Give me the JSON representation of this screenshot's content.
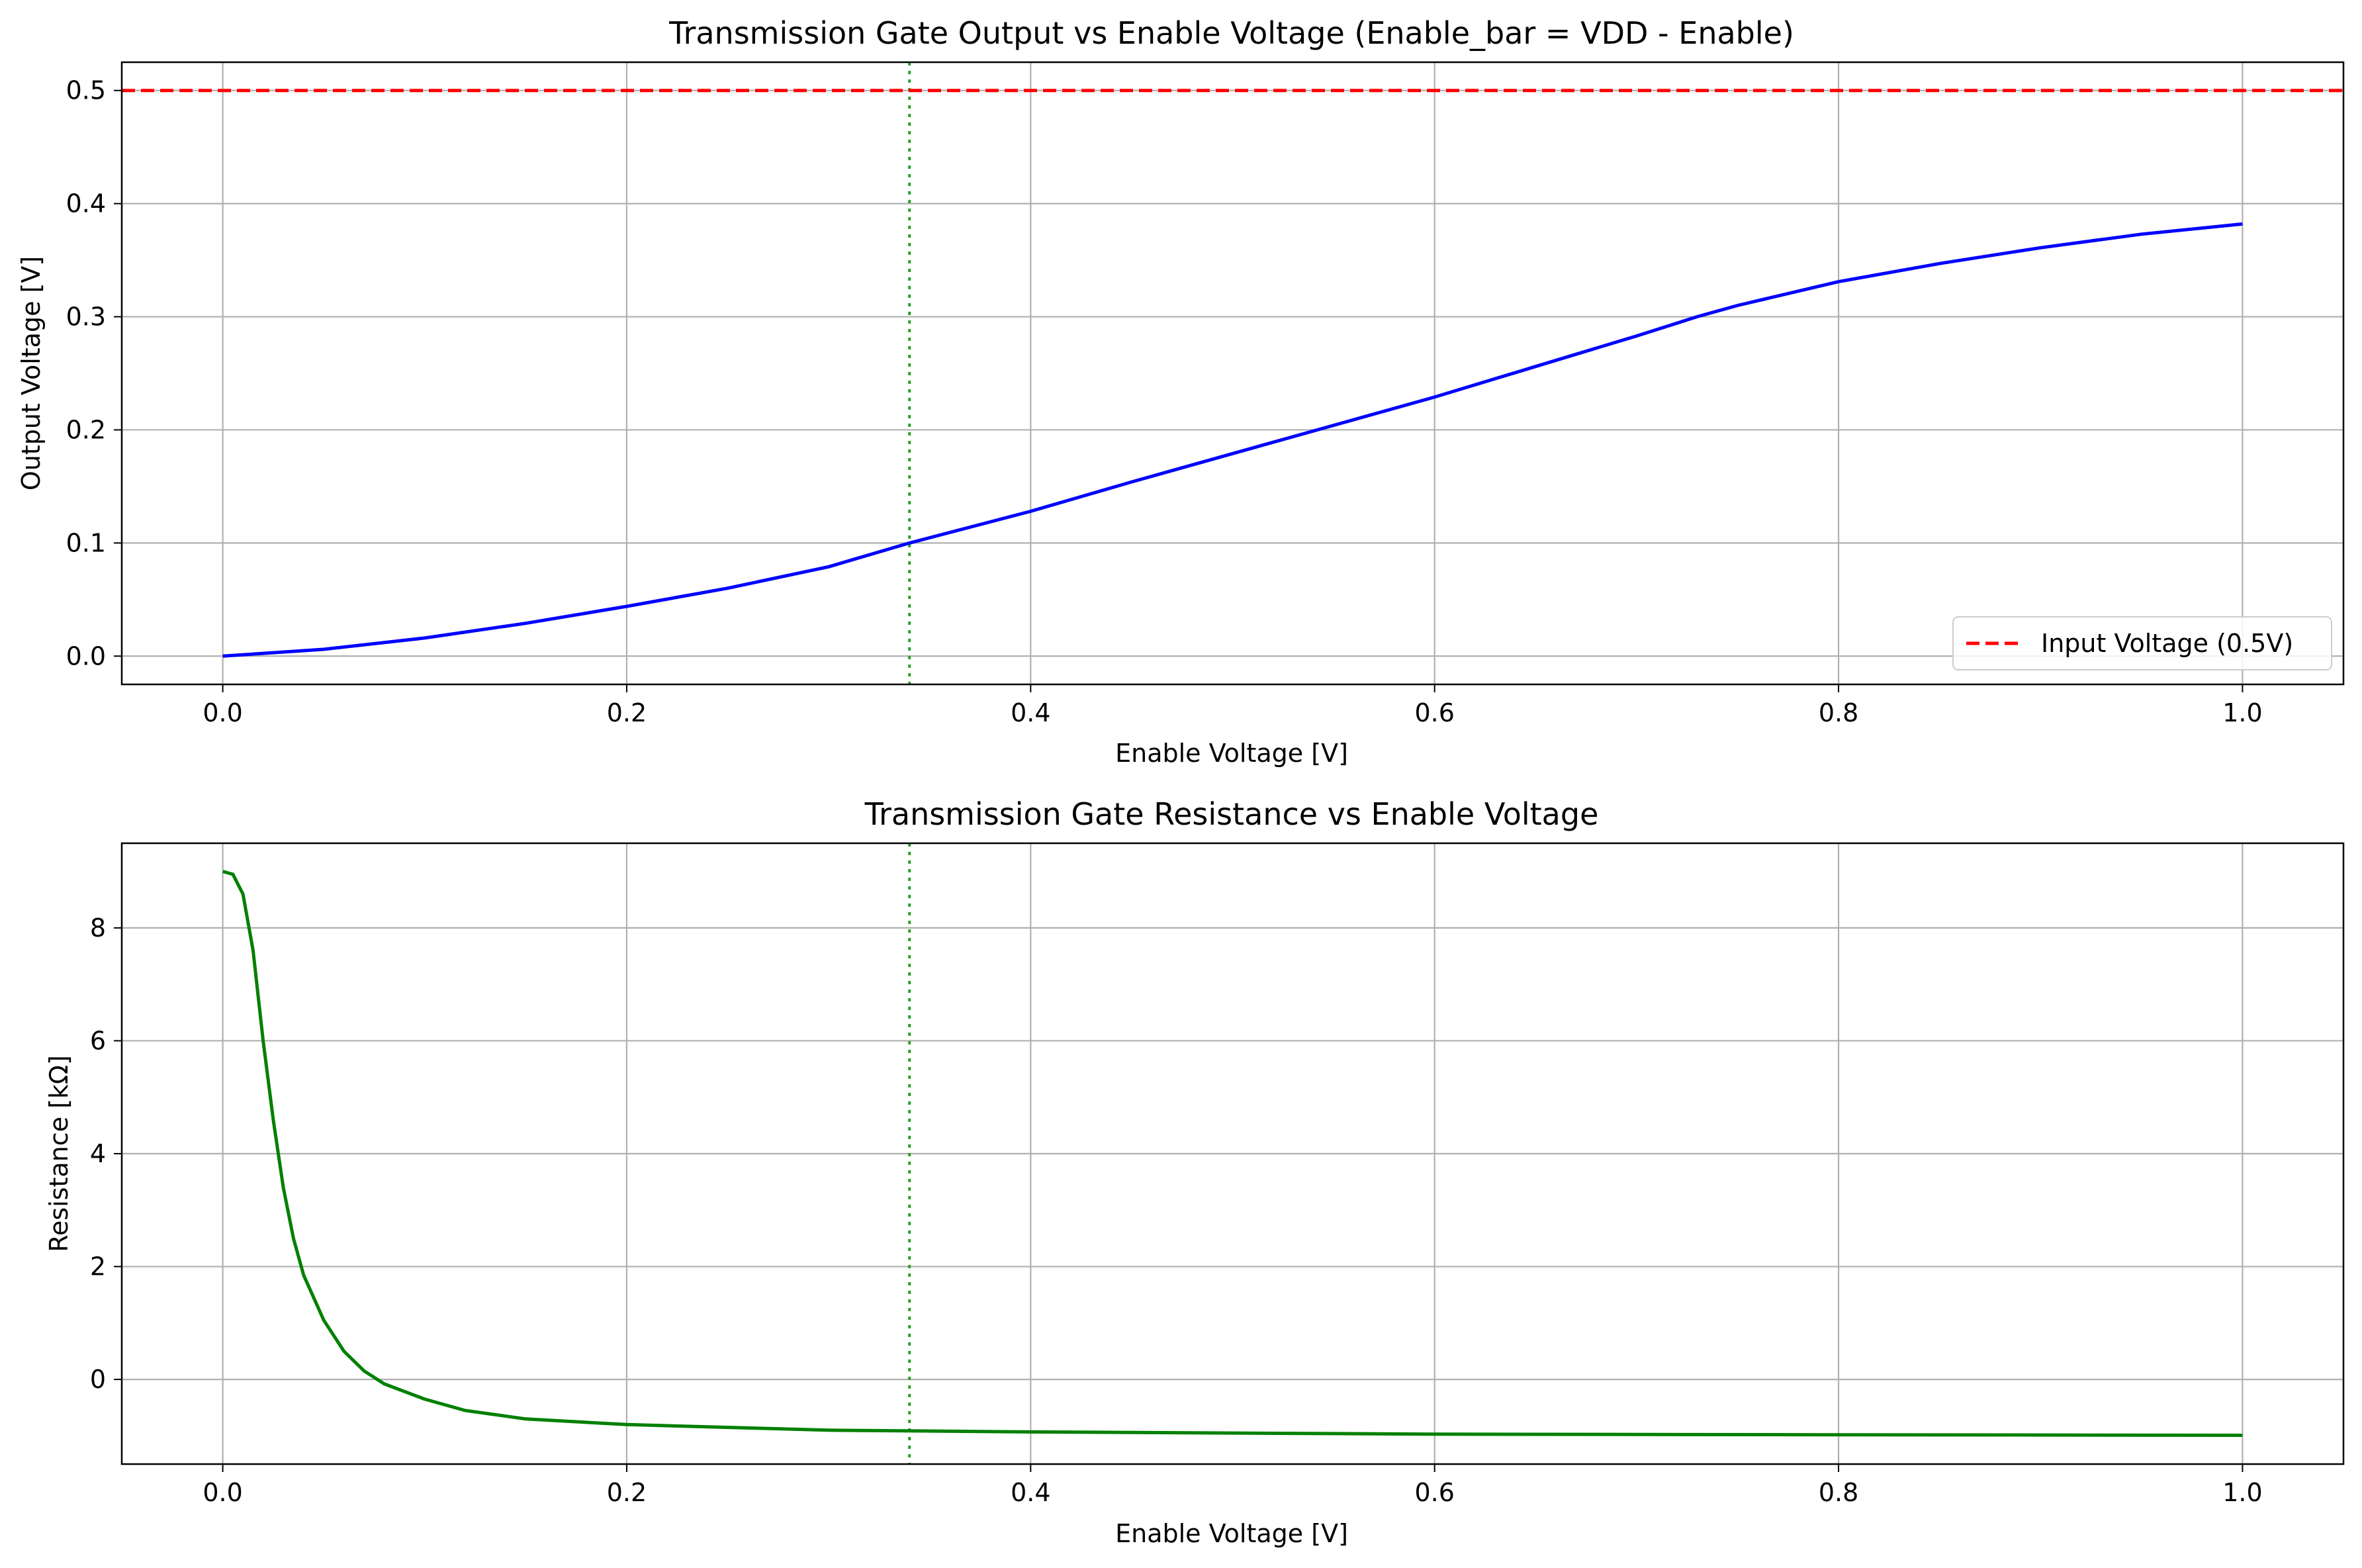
{
  "chart_data": [
    {
      "type": "line",
      "title": "Transmission Gate Output vs Enable Voltage (Enable_bar = VDD - Enable)",
      "xlabel": "Enable Voltage [V]",
      "ylabel": "Output Voltage [V]",
      "xlim": [
        -0.05,
        1.05
      ],
      "ylim": [
        -0.025,
        0.525
      ],
      "xticks": [
        "0.0",
        "0.2",
        "0.4",
        "0.6",
        "0.8",
        "1.0"
      ],
      "yticks": [
        "0.0",
        "0.1",
        "0.2",
        "0.3",
        "0.4",
        "0.5"
      ],
      "grid": true,
      "legend_position": "lower-right",
      "series": [
        {
          "style": "solid",
          "color": "#0000ff",
          "x": [
            0.0,
            0.05,
            0.1,
            0.15,
            0.2,
            0.25,
            0.3,
            0.34,
            0.4,
            0.45,
            0.5,
            0.55,
            0.6,
            0.65,
            0.7,
            0.73,
            0.75,
            0.8,
            0.85,
            0.9,
            0.95,
            1.0
          ],
          "y": [
            0.0,
            0.006,
            0.016,
            0.029,
            0.044,
            0.06,
            0.079,
            0.1,
            0.128,
            0.154,
            0.179,
            0.204,
            0.229,
            0.256,
            0.283,
            0.3,
            0.31,
            0.331,
            0.347,
            0.361,
            0.373,
            0.382
          ]
        },
        {
          "name": "Input Voltage (0.5V)",
          "style": "dashed",
          "color": "#ff0000",
          "x": [
            -0.05,
            1.05
          ],
          "y": [
            0.5,
            0.5
          ]
        }
      ],
      "vlines": [
        {
          "x": 0.34,
          "color": "#2ca02c",
          "style": "dotted"
        }
      ]
    },
    {
      "type": "line",
      "title": "Transmission Gate Resistance vs Enable Voltage",
      "xlabel": "Enable Voltage [V]",
      "ylabel": "Resistance [kΩ]",
      "xlim": [
        -0.05,
        1.05
      ],
      "ylim": [
        -1.5,
        9.5
      ],
      "xticks": [
        "0.0",
        "0.2",
        "0.4",
        "0.6",
        "0.8",
        "1.0"
      ],
      "yticks": [
        "0",
        "2",
        "4",
        "6",
        "8"
      ],
      "grid": true,
      "series": [
        {
          "style": "solid",
          "color": "#008000",
          "x": [
            0.0,
            0.005,
            0.01,
            0.015,
            0.02,
            0.025,
            0.03,
            0.035,
            0.04,
            0.05,
            0.06,
            0.07,
            0.08,
            0.1,
            0.12,
            0.15,
            0.2,
            0.3,
            0.4,
            0.5,
            0.6,
            0.8,
            1.0
          ],
          "y": [
            9.0,
            8.95,
            8.6,
            7.6,
            6.0,
            4.6,
            3.4,
            2.5,
            1.85,
            1.05,
            0.5,
            0.15,
            -0.08,
            -0.35,
            -0.55,
            -0.7,
            -0.8,
            -0.9,
            -0.93,
            -0.95,
            -0.97,
            -0.98,
            -0.99
          ]
        }
      ],
      "vlines": [
        {
          "x": 0.34,
          "color": "#2ca02c",
          "style": "dotted"
        }
      ]
    }
  ]
}
